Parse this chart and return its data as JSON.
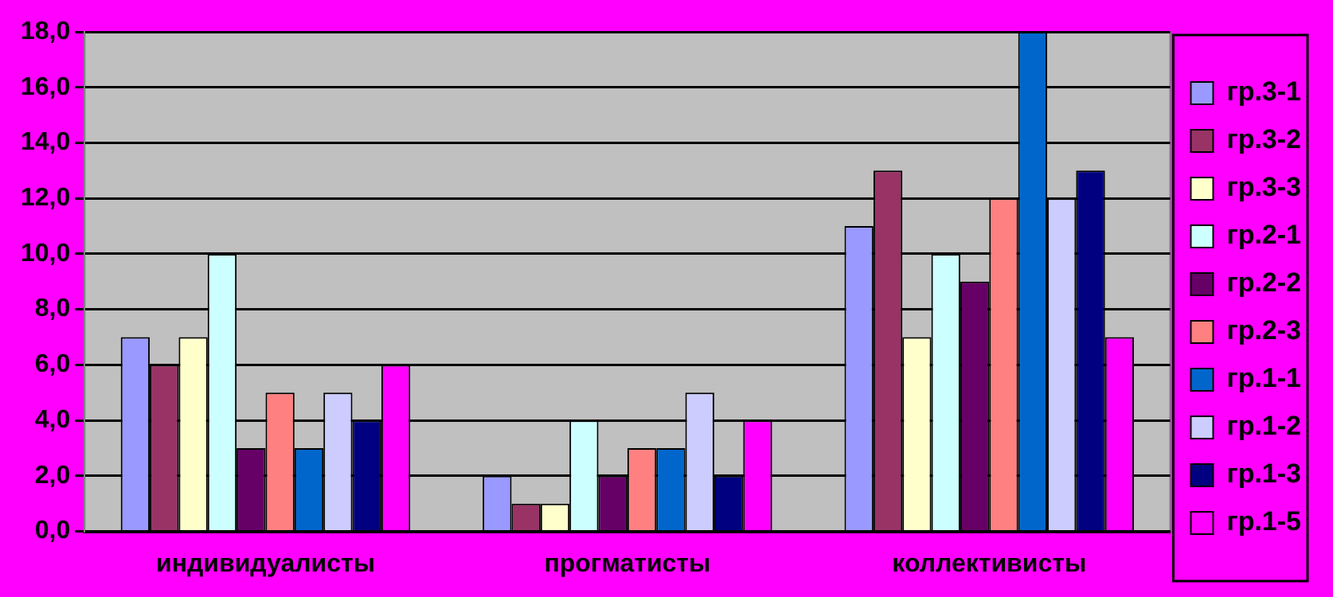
{
  "chart_data": {
    "type": "bar",
    "categories": [
      "индивидуалисты",
      "прогматисты",
      "коллективисты"
    ],
    "series": [
      {
        "name": "гр.3-1",
        "color": "#9999ff",
        "values": [
          7,
          2,
          11
        ]
      },
      {
        "name": "гр.3-2",
        "color": "#993366",
        "values": [
          6,
          1,
          13
        ]
      },
      {
        "name": "гр.3-3",
        "color": "#ffffcc",
        "values": [
          7,
          1,
          7
        ]
      },
      {
        "name": "гр.2-1",
        "color": "#ccffff",
        "values": [
          10,
          4,
          10
        ]
      },
      {
        "name": "гр.2-2",
        "color": "#660066",
        "values": [
          3,
          2,
          9
        ]
      },
      {
        "name": "гр.2-3",
        "color": "#ff8080",
        "values": [
          5,
          3,
          12
        ]
      },
      {
        "name": "гр.1-1",
        "color": "#0066cc",
        "values": [
          3,
          3,
          18
        ]
      },
      {
        "name": "гр.1-2",
        "color": "#ccccff",
        "values": [
          5,
          5,
          12
        ]
      },
      {
        "name": "гр.1-3",
        "color": "#000080",
        "values": [
          4,
          2,
          13
        ]
      },
      {
        "name": "гр.1-5",
        "color": "#ff00ff",
        "values": [
          6,
          4,
          7
        ]
      }
    ],
    "ylim": [
      0,
      18
    ],
    "yticks": [
      {
        "value": 0,
        "label": "0,0"
      },
      {
        "value": 2,
        "label": "2,0"
      },
      {
        "value": 4,
        "label": "4,0"
      },
      {
        "value": 6,
        "label": "6,0"
      },
      {
        "value": 8,
        "label": "8,0"
      },
      {
        "value": 10,
        "label": "10,0"
      },
      {
        "value": 12,
        "label": "12,0"
      },
      {
        "value": 14,
        "label": "14,0"
      },
      {
        "value": 16,
        "label": "16,0"
      },
      {
        "value": 18,
        "label": "18,0"
      }
    ],
    "grid": "y",
    "legend": "right"
  }
}
